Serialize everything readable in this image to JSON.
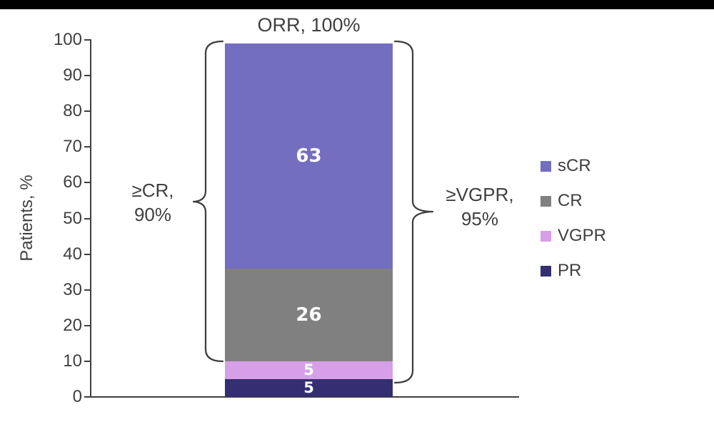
{
  "title": "ORR, 100%",
  "y_axis": {
    "label": "Patients, %",
    "ticks": [
      "100",
      "90",
      "80",
      "70",
      "60",
      "50",
      "40",
      "30",
      "20",
      "10",
      "0"
    ]
  },
  "bar": {
    "segments": [
      {
        "name": "sCR",
        "value": 63,
        "label": "63",
        "color": "#746EC0"
      },
      {
        "name": "CR",
        "value": 26,
        "label": "26",
        "color": "#808080"
      },
      {
        "name": "VGPR",
        "value": 5,
        "label": "5",
        "color": "#D79FE8"
      },
      {
        "name": "PR",
        "value": 5,
        "label": "5",
        "color": "#332F70"
      }
    ]
  },
  "annotations": {
    "cr": {
      "line1": "≥CR,",
      "line2": "90%"
    },
    "vgpr": {
      "line1": "≥VGPR,",
      "line2": "95%"
    }
  },
  "legend": {
    "items": [
      {
        "label": "sCR",
        "color": "#746EC0"
      },
      {
        "label": "CR",
        "color": "#808080"
      },
      {
        "label": "VGPR",
        "color": "#D79FE8"
      },
      {
        "label": "PR",
        "color": "#332F70"
      }
    ]
  },
  "colors": {
    "axis": "#3F3F3F",
    "text": "#3F3F3F",
    "value_text": "#FFFFFF",
    "letterbox": "#000000"
  },
  "chart_data": {
    "type": "bar",
    "stacked": true,
    "categories": [
      ""
    ],
    "series": [
      {
        "name": "sCR",
        "values": [
          63
        ]
      },
      {
        "name": "CR",
        "values": [
          26
        ]
      },
      {
        "name": "VGPR",
        "values": [
          5
        ]
      },
      {
        "name": "PR",
        "values": [
          5
        ]
      }
    ],
    "title": "ORR, 100%",
    "xlabel": "",
    "ylabel": "Patients, %",
    "ylim": [
      0,
      100
    ],
    "ytick_step": 10,
    "grid": false,
    "legend_position": "right",
    "bar_value_labels": [
      63,
      26,
      5,
      5
    ],
    "annotations": [
      {
        "text": "ORR, 100%",
        "position": "above-bar"
      },
      {
        "text": "≥CR, 90%",
        "position": "left-brace",
        "span_pct": [
          10,
          100
        ]
      },
      {
        "text": "≥VGPR, 95%",
        "position": "right-brace",
        "span_pct": [
          5,
          100
        ]
      }
    ]
  }
}
